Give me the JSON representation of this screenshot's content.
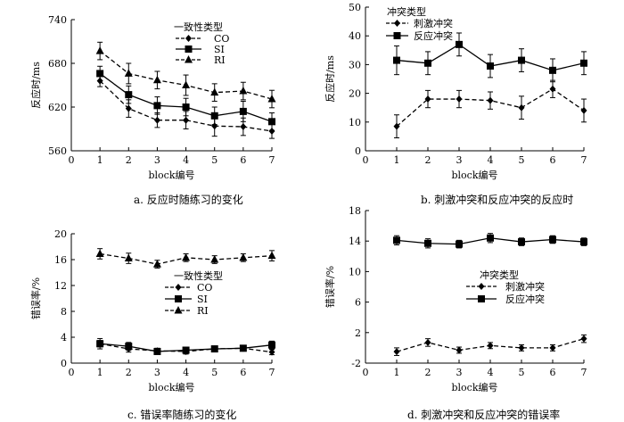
{
  "chart_data": [
    {
      "type": "line",
      "caption": "a. 反应时随练习的变化",
      "xlabel": "block编号",
      "ylabel": "反应时/ms",
      "x": [
        1,
        2,
        3,
        4,
        5,
        6,
        7
      ],
      "xlim": [
        0,
        7
      ],
      "ylim": [
        560,
        740
      ],
      "yticks": [
        560,
        620,
        680,
        740
      ],
      "legend_title": "一致性类型",
      "legend_position": "top-right",
      "series": [
        {
          "name": "CO",
          "marker": "diamond",
          "line": "dashed",
          "values": [
            656,
            618,
            602,
            602,
            594,
            593,
            587
          ],
          "errors": [
            8,
            12,
            10,
            12,
            14,
            12,
            10
          ]
        },
        {
          "name": "SI",
          "marker": "square",
          "line": "solid",
          "values": [
            666,
            637,
            622,
            620,
            608,
            614,
            600
          ],
          "errors": [
            10,
            12,
            12,
            12,
            12,
            14,
            12
          ]
        },
        {
          "name": "RI",
          "marker": "triangle",
          "line": "dashed",
          "values": [
            697,
            666,
            657,
            650,
            640,
            642,
            631
          ],
          "errors": [
            12,
            14,
            12,
            14,
            12,
            12,
            12
          ]
        }
      ]
    },
    {
      "type": "line",
      "caption": "b. 刺激冲突和反应冲突的反应时",
      "xlabel": "block编号",
      "ylabel": "反应时/ms",
      "x": [
        1,
        2,
        3,
        4,
        5,
        6,
        7
      ],
      "xlim": [
        0,
        7
      ],
      "ylim": [
        0,
        50
      ],
      "yticks": [
        0,
        10,
        20,
        30,
        40,
        50
      ],
      "legend_title": "冲突类型",
      "legend_position": "top-left",
      "series": [
        {
          "name": "刺激冲突",
          "marker": "diamond",
          "line": "dashed",
          "values": [
            8.5,
            18,
            18,
            17.5,
            15,
            21.5,
            14
          ],
          "errors": [
            4,
            3,
            3,
            3,
            4,
            3,
            4
          ]
        },
        {
          "name": "反应冲突",
          "marker": "square",
          "line": "solid",
          "values": [
            31.5,
            30.5,
            37,
            29.5,
            31.5,
            28,
            30.5
          ],
          "errors": [
            5,
            4,
            4,
            4,
            4,
            4,
            4
          ]
        }
      ]
    },
    {
      "type": "line",
      "caption": "c. 错误率随练习的变化",
      "xlabel": "block编号",
      "ylabel": "错误率/%",
      "x": [
        1,
        2,
        3,
        4,
        5,
        6,
        7
      ],
      "xlim": [
        0,
        7
      ],
      "ylim": [
        0,
        20
      ],
      "yticks": [
        0,
        4,
        8,
        12,
        16,
        20
      ],
      "legend_title": "一致性类型",
      "legend_position": "center-right",
      "series": [
        {
          "name": "CO",
          "marker": "diamond",
          "line": "dashed",
          "values": [
            3,
            2.2,
            1.9,
            1.8,
            2.2,
            2.3,
            1.7
          ],
          "errors": [
            0.5,
            0.5,
            0.4,
            0.4,
            0.4,
            0.4,
            0.4
          ]
        },
        {
          "name": "SI",
          "marker": "square",
          "line": "solid",
          "values": [
            3,
            2.6,
            1.8,
            2.0,
            2.2,
            2.3,
            2.8
          ],
          "errors": [
            0.8,
            0.6,
            0.4,
            0.4,
            0.4,
            0.4,
            0.6
          ]
        },
        {
          "name": "RI",
          "marker": "triangle",
          "line": "dashed",
          "values": [
            16.9,
            16.2,
            15.3,
            16.3,
            16.0,
            16.3,
            16.6
          ],
          "errors": [
            0.8,
            0.8,
            0.6,
            0.6,
            0.6,
            0.6,
            0.8
          ]
        }
      ]
    },
    {
      "type": "line",
      "caption": "d. 刺激冲突和反应冲突的错误率",
      "xlabel": "block编号",
      "ylabel": "错误率/%",
      "x": [
        1,
        2,
        3,
        4,
        5,
        6,
        7
      ],
      "xlim": [
        0,
        7
      ],
      "ylim": [
        -2,
        18
      ],
      "yticks": [
        -2,
        2,
        6,
        10,
        14,
        18
      ],
      "legend_title": "冲突类型",
      "legend_position": "center-right",
      "series": [
        {
          "name": "刺激冲突",
          "marker": "diamond",
          "line": "dashed",
          "values": [
            -0.5,
            0.7,
            -0.3,
            0.3,
            0,
            0,
            1.2
          ],
          "errors": [
            0.5,
            0.5,
            0.4,
            0.4,
            0.4,
            0.4,
            0.5
          ]
        },
        {
          "name": "反应冲突",
          "marker": "square",
          "line": "solid",
          "values": [
            14.1,
            13.7,
            13.6,
            14.4,
            13.9,
            14.2,
            13.9
          ],
          "errors": [
            0.6,
            0.6,
            0.5,
            0.6,
            0.5,
            0.5,
            0.5
          ]
        }
      ]
    }
  ]
}
